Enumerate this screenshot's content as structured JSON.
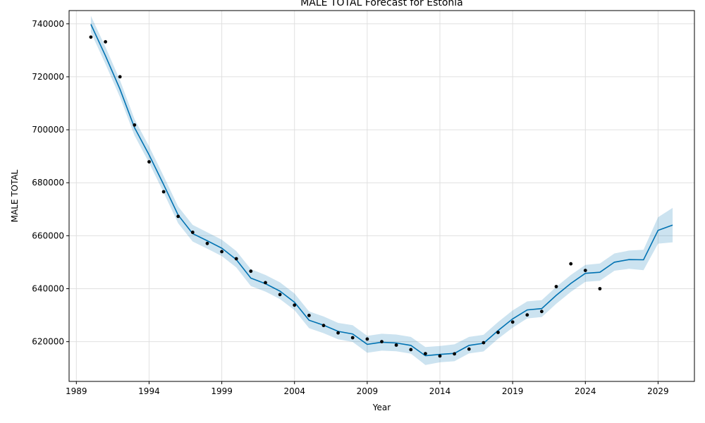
{
  "chart_data": {
    "type": "line",
    "title": "MALE TOTAL Forecast for Estonia",
    "xlabel": "Year",
    "ylabel": "MALE TOTAL",
    "xlim": [
      1988.5,
      2031.5
    ],
    "ylim": [
      605000,
      745000
    ],
    "xticks": [
      1989,
      1994,
      1999,
      2004,
      2009,
      2014,
      2019,
      2024,
      2029
    ],
    "yticks": [
      620000,
      640000,
      660000,
      680000,
      700000,
      720000,
      740000
    ],
    "grid": true,
    "colors": {
      "forecast": "#0072b2",
      "interval": "#0072b2",
      "observed": "#000000"
    },
    "series": [
      {
        "kind": "observed",
        "x": [
          1990,
          1991,
          1992,
          1993,
          1994,
          1995,
          1996,
          1997,
          1998,
          1999,
          2000,
          2001,
          2002,
          2003,
          2004,
          2005,
          2006,
          2007,
          2008,
          2009,
          2010,
          2011,
          2012,
          2013,
          2014,
          2015,
          2016,
          2017,
          2018,
          2019,
          2020,
          2021,
          2022,
          2023,
          2024,
          2025
        ],
        "y": [
          735000,
          733200,
          720000,
          701800,
          687900,
          676600,
          667300,
          661300,
          657100,
          654000,
          651300,
          646600,
          642300,
          637800,
          633800,
          629900,
          626100,
          623300,
          621500,
          621000,
          620000,
          618700,
          617000,
          615500,
          614600,
          615400,
          617200,
          619600,
          623500,
          627400,
          630100,
          631400,
          640800,
          649400,
          646900,
          640000
        ]
      },
      {
        "kind": "forecast",
        "x": [
          1990,
          1991,
          1992,
          1993,
          1994,
          1995,
          1996,
          1997,
          1998,
          1999,
          2000,
          2001,
          2002,
          2003,
          2004,
          2005,
          2006,
          2007,
          2008,
          2009,
          2010,
          2011,
          2012,
          2013,
          2014,
          2015,
          2016,
          2017,
          2018,
          2019,
          2020,
          2021,
          2022,
          2023,
          2024,
          2025,
          2026,
          2027,
          2028,
          2029,
          2030
        ],
        "y": [
          739800,
          727900,
          715300,
          700800,
          690500,
          679300,
          667800,
          660800,
          658100,
          655300,
          651000,
          644000,
          641900,
          639100,
          634900,
          628100,
          626200,
          623900,
          622900,
          619000,
          619800,
          619500,
          618600,
          614700,
          615200,
          615600,
          618600,
          619400,
          624200,
          628600,
          632000,
          632500,
          637500,
          642000,
          645800,
          646200,
          650000,
          651000,
          650900,
          662000,
          664000
        ]
      },
      {
        "kind": "interval",
        "x": [
          1990,
          1991,
          1992,
          1993,
          1994,
          1995,
          1996,
          1997,
          1998,
          1999,
          2000,
          2001,
          2002,
          2003,
          2004,
          2005,
          2006,
          2007,
          2008,
          2009,
          2010,
          2011,
          2012,
          2013,
          2014,
          2015,
          2016,
          2017,
          2018,
          2019,
          2020,
          2021,
          2022,
          2023,
          2024,
          2025,
          2026,
          2027,
          2028,
          2029,
          2030
        ],
        "lower": [
          736800,
          724800,
          712300,
          697800,
          687500,
          676300,
          664700,
          657800,
          655100,
          652300,
          648000,
          641000,
          638900,
          636100,
          631900,
          625100,
          623200,
          620900,
          619900,
          615800,
          616600,
          616400,
          615500,
          611200,
          612200,
          612600,
          615600,
          616300,
          621100,
          625300,
          628800,
          629300,
          634300,
          638800,
          642600,
          643000,
          646800,
          647500,
          647000,
          657000,
          657500
        ]
      },
      {
        "kind": "interval",
        "x": [
          1990,
          1991,
          1992,
          1993,
          1994,
          1995,
          1996,
          1997,
          1998,
          1999,
          2000,
          2001,
          2002,
          2003,
          2004,
          2005,
          2006,
          2007,
          2008,
          2009,
          2010,
          2011,
          2012,
          2013,
          2014,
          2015,
          2016,
          2017,
          2018,
          2019,
          2020,
          2021,
          2022,
          2023,
          2024,
          2025,
          2026,
          2027,
          2028,
          2029,
          2030
        ],
        "upper": [
          743000,
          731200,
          718700,
          704000,
          693700,
          682500,
          671000,
          664100,
          661300,
          658500,
          654200,
          647400,
          645200,
          642400,
          638200,
          631400,
          629500,
          627100,
          626200,
          622200,
          623000,
          622700,
          621800,
          618000,
          618400,
          619000,
          621800,
          622600,
          627400,
          631800,
          635200,
          635700,
          640700,
          645200,
          649000,
          649500,
          653300,
          654400,
          654700,
          667000,
          670500
        ]
      }
    ]
  }
}
